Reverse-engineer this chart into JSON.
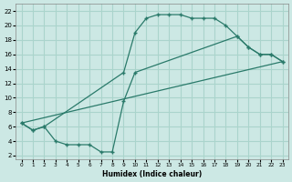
{
  "background_color": "#cce8e4",
  "grid_color": "#aad4cc",
  "line_color": "#2a7a6a",
  "xlabel": "Humidex (Indice chaleur)",
  "xlim": [
    -0.5,
    23.5
  ],
  "ylim": [
    1.5,
    23
  ],
  "xticks": [
    0,
    1,
    2,
    3,
    4,
    5,
    6,
    7,
    8,
    9,
    10,
    11,
    12,
    13,
    14,
    15,
    16,
    17,
    18,
    19,
    20,
    21,
    22,
    23
  ],
  "yticks": [
    2,
    4,
    6,
    8,
    10,
    12,
    14,
    16,
    18,
    20,
    22
  ],
  "curve_main_x": [
    0,
    1,
    2,
    9,
    10,
    11,
    12,
    13,
    14,
    15,
    16,
    17,
    18,
    19,
    20,
    21,
    22,
    23
  ],
  "curve_main_y": [
    6.5,
    5.5,
    6.0,
    13.5,
    19.0,
    21.0,
    21.5,
    21.5,
    21.5,
    21.0,
    21.0,
    21.0,
    20.0,
    18.5,
    17.0,
    16.0,
    16.0,
    15.0
  ],
  "curve_dip_x": [
    0,
    1,
    2,
    3,
    4,
    5,
    6,
    7,
    8,
    9,
    10,
    19,
    20,
    21,
    22,
    23
  ],
  "curve_dip_y": [
    6.5,
    5.5,
    6.0,
    4.0,
    3.5,
    3.5,
    3.5,
    2.5,
    2.5,
    9.5,
    13.5,
    18.5,
    17.0,
    16.0,
    16.0,
    15.0
  ],
  "curve_line_x": [
    0,
    23
  ],
  "curve_line_y": [
    6.5,
    15.0
  ]
}
